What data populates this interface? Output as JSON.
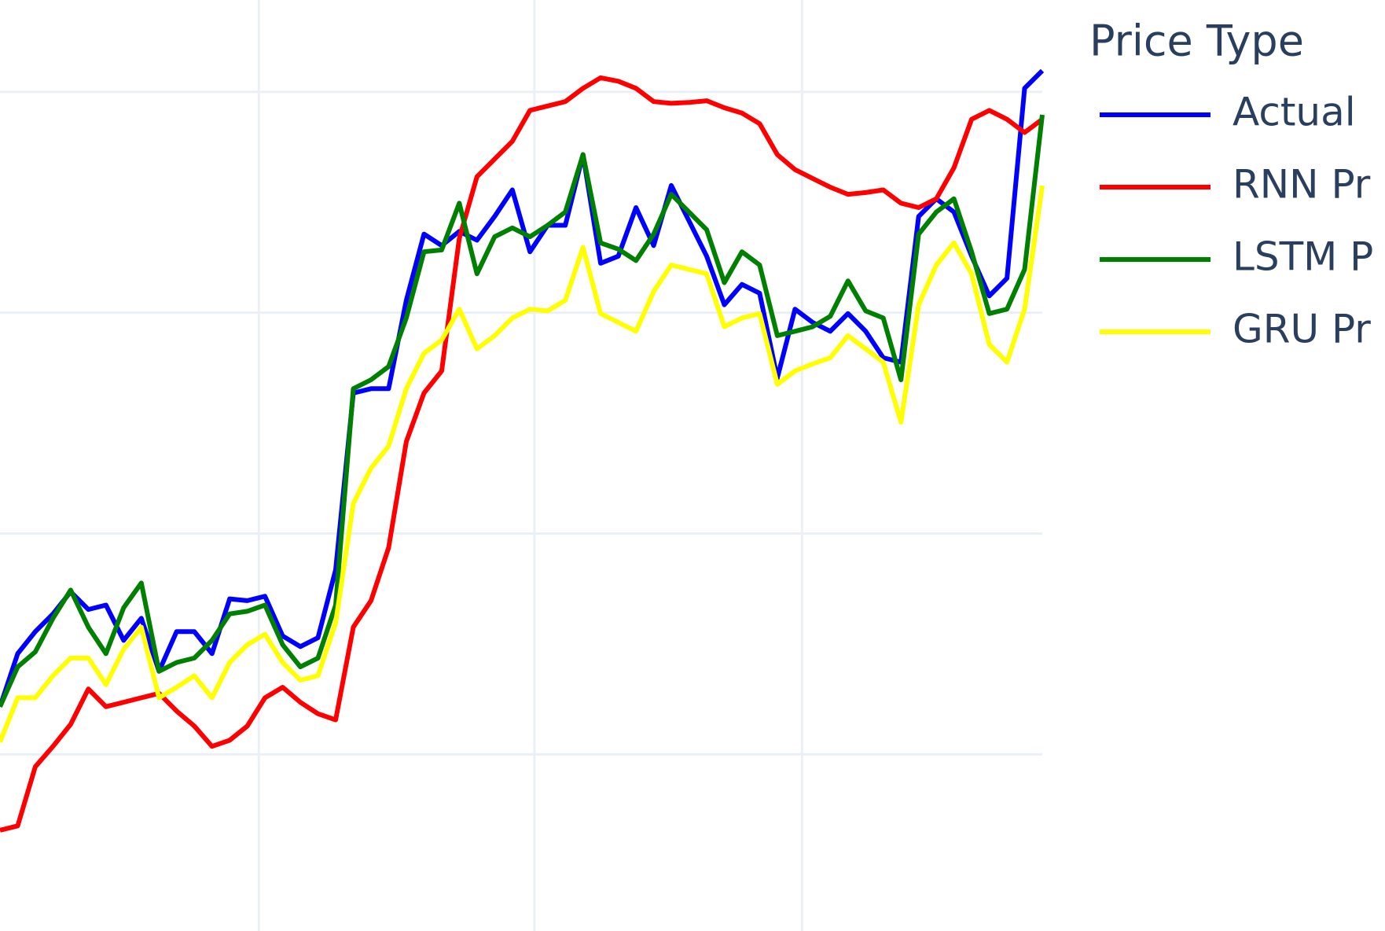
{
  "chart_data": {
    "type": "line",
    "legend_title": "Price Type",
    "legend": "top-right",
    "grid": true,
    "xlim": [
      0,
      59
    ],
    "xticks": [
      14.65,
      30.25,
      45.4
    ],
    "ylim": [
      0,
      105.4
    ],
    "yticks": [
      20,
      45,
      70,
      95
    ],
    "series": [
      {
        "name": "Actual",
        "color": "#0000ff",
        "values": [
          25.4,
          31.4,
          33.9,
          35.9,
          38.4,
          36.4,
          36.9,
          32.9,
          35.4,
          29.4,
          33.9,
          33.9,
          31.4,
          37.6,
          37.4,
          37.9,
          33.4,
          32.2,
          33.2,
          40.9,
          60.9,
          61.4,
          61.4,
          71.4,
          78.9,
          77.6,
          79.2,
          78.2,
          80.9,
          83.9,
          76.9,
          79.9,
          79.9,
          87.9,
          75.6,
          76.4,
          81.9,
          77.6,
          84.4,
          80.4,
          76.4,
          70.9,
          73.2,
          72.2,
          62.6,
          70.4,
          68.9,
          67.9,
          69.9,
          67.9,
          64.9,
          64.4,
          80.9,
          82.9,
          81.4,
          76.4,
          71.9,
          73.9,
          95.4,
          97.4
        ]
      },
      {
        "name": "RNN Pr",
        "color": "#ff0000",
        "values": [
          11.4,
          11.9,
          18.6,
          20.9,
          23.4,
          27.4,
          25.4,
          25.9,
          26.4,
          26.9,
          24.9,
          23.2,
          20.9,
          21.6,
          23.2,
          26.4,
          27.6,
          25.9,
          24.6,
          23.9,
          34.4,
          37.4,
          43.4,
          55.4,
          60.9,
          63.4,
          78.4,
          85.4,
          87.4,
          89.4,
          92.9,
          93.4,
          93.9,
          95.4,
          96.6,
          96.2,
          95.4,
          93.9,
          93.7,
          93.8,
          94.0,
          93.2,
          92.6,
          91.4,
          87.9,
          86.2,
          85.2,
          84.2,
          83.4,
          83.6,
          83.9,
          82.4,
          81.9,
          82.9,
          86.4,
          91.9,
          92.9,
          91.9,
          90.4,
          91.9
        ]
      },
      {
        "name": "LSTM P",
        "color": "#008000",
        "values": [
          25.4,
          29.9,
          31.6,
          35.4,
          38.6,
          34.4,
          31.4,
          36.6,
          39.4,
          29.4,
          30.4,
          30.9,
          32.9,
          35.9,
          36.2,
          36.9,
          32.4,
          29.9,
          30.9,
          36.9,
          61.4,
          62.4,
          63.9,
          69.4,
          76.9,
          77.1,
          82.4,
          74.4,
          78.6,
          79.6,
          78.6,
          79.9,
          81.4,
          87.9,
          77.9,
          77.2,
          75.9,
          78.9,
          83.4,
          81.4,
          79.4,
          73.4,
          76.9,
          75.4,
          67.4,
          67.9,
          68.4,
          69.6,
          73.6,
          70.2,
          69.4,
          62.4,
          78.9,
          81.4,
          82.9,
          76.9,
          69.9,
          70.4,
          74.9,
          92.4
        ]
      },
      {
        "name": "GRU Pr",
        "color": "#ffff00",
        "values": [
          21.4,
          26.4,
          26.4,
          28.9,
          30.9,
          30.9,
          27.9,
          31.9,
          34.4,
          26.4,
          27.6,
          28.9,
          26.4,
          30.4,
          32.4,
          33.6,
          30.4,
          28.4,
          28.9,
          34.9,
          48.4,
          52.4,
          54.9,
          61.4,
          65.4,
          66.9,
          70.4,
          65.9,
          67.4,
          69.4,
          70.4,
          70.2,
          71.4,
          77.4,
          69.9,
          68.9,
          67.9,
          72.4,
          75.4,
          74.9,
          74.4,
          68.4,
          69.4,
          69.9,
          61.9,
          63.4,
          64.2,
          64.9,
          67.4,
          65.9,
          64.4,
          57.6,
          70.9,
          75.4,
          77.9,
          74.4,
          66.4,
          64.4,
          70.4,
          84.4
        ]
      }
    ]
  }
}
